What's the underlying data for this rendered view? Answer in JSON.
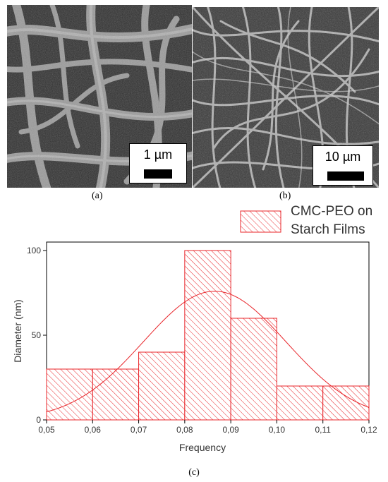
{
  "panel_a": {
    "scale_label": "1 µm",
    "caption": "(a)"
  },
  "panel_b": {
    "scale_label": "10 µm",
    "caption": "(b)"
  },
  "panel_c": {
    "caption": "(c)"
  },
  "chart_data": {
    "type": "bar",
    "xlabel": "Frequency",
    "ylabel": "Diameter (nm)",
    "xlim": [
      0.05,
      0.12
    ],
    "ylim": [
      0,
      105
    ],
    "x_ticks": [
      "0,05",
      "0,06",
      "0,07",
      "0,08",
      "0,09",
      "0,10",
      "0,11",
      "0,12"
    ],
    "y_ticks": [
      "0",
      "50",
      "100"
    ],
    "legend": {
      "label_line1": "CMC-PEO on",
      "label_line2": "Starch Films",
      "placement": "top-right outside"
    },
    "bins": [
      {
        "x0": 0.05,
        "x1": 0.06,
        "value": 30
      },
      {
        "x0": 0.06,
        "x1": 0.07,
        "value": 30
      },
      {
        "x0": 0.07,
        "x1": 0.08,
        "value": 40
      },
      {
        "x0": 0.08,
        "x1": 0.09,
        "value": 100
      },
      {
        "x0": 0.09,
        "x1": 0.1,
        "value": 60
      },
      {
        "x0": 0.1,
        "x1": 0.11,
        "value": 20
      },
      {
        "x0": 0.11,
        "x1": 0.12,
        "value": 20
      }
    ],
    "fit_curve": {
      "type": "normal",
      "mean": 0.0865,
      "sd": 0.0155,
      "peak": 76
    },
    "color": "#e8252a"
  }
}
